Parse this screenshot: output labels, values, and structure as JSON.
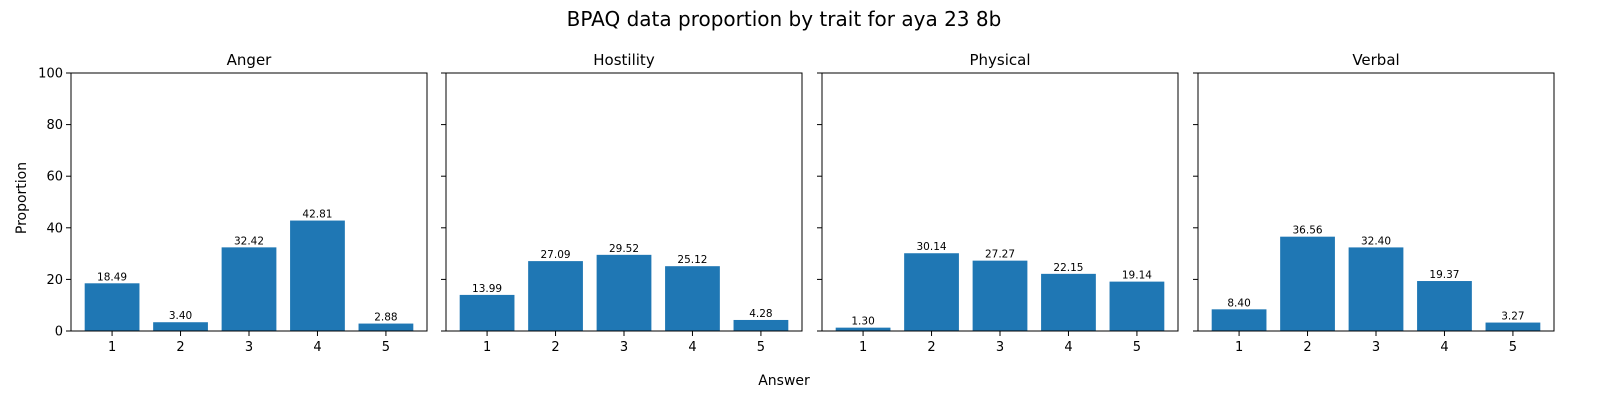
{
  "chart_data": {
    "type": "bar",
    "title": "BPAQ data proportion by trait for aya 23 8b",
    "xlabel": "Answer",
    "ylabel": "Proportion",
    "ylim": [
      0,
      100
    ],
    "yticks": [
      0,
      20,
      40,
      60,
      80,
      100
    ],
    "categories": [
      "1",
      "2",
      "3",
      "4",
      "5"
    ],
    "bar_color": "#1f77b4",
    "grid": false,
    "panels": [
      {
        "title": "Anger",
        "values": [
          18.49,
          3.4,
          32.42,
          42.81,
          2.88
        ],
        "labels": [
          "18.49",
          "3.40",
          "32.42",
          "42.81",
          "2.88"
        ]
      },
      {
        "title": "Hostility",
        "values": [
          13.99,
          27.09,
          29.52,
          25.12,
          4.28
        ],
        "labels": [
          "13.99",
          "27.09",
          "29.52",
          "25.12",
          "4.28"
        ]
      },
      {
        "title": "Physical",
        "values": [
          1.3,
          30.14,
          27.27,
          22.15,
          19.14
        ],
        "labels": [
          "1.30",
          "30.14",
          "27.27",
          "22.15",
          "19.14"
        ]
      },
      {
        "title": "Verbal",
        "values": [
          8.4,
          36.56,
          32.4,
          19.37,
          3.27
        ],
        "labels": [
          "8.40",
          "36.56",
          "32.40",
          "19.37",
          "3.27"
        ]
      }
    ]
  }
}
